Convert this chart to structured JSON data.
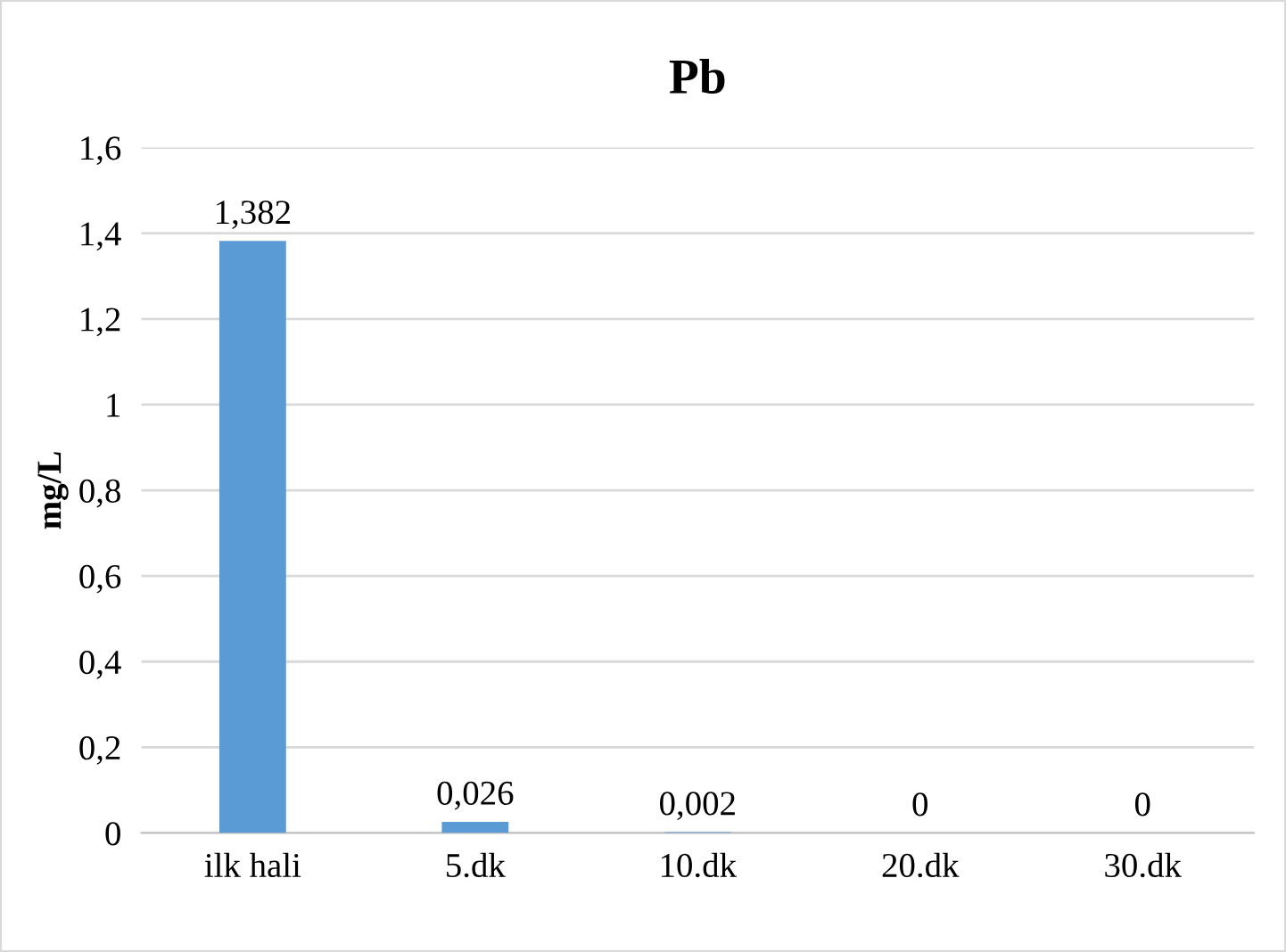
{
  "chart_data": {
    "type": "bar",
    "title": "Pb",
    "ylabel": "mg/L",
    "categories": [
      "ilk hali",
      "5.dk",
      "10.dk",
      "20.dk",
      "30.dk"
    ],
    "values": [
      1.382,
      0.026,
      0.002,
      0,
      0
    ],
    "value_labels": [
      "1,382",
      "0,026",
      "0,002",
      "0",
      "0"
    ],
    "color": "#5b9bd5",
    "ylim": [
      0,
      1.6
    ],
    "yticks": [
      0,
      {
        "value": 0.2,
        "label": "0,2"
      },
      {
        "value": 0.4,
        "label": "0,4"
      },
      {
        "value": 0.6,
        "label": "0,6"
      },
      {
        "value": 0.8,
        "label": "0,8"
      },
      1,
      {
        "value": 1.2,
        "label": "1,2"
      },
      {
        "value": 1.4,
        "label": "1,4"
      },
      {
        "value": 1.6,
        "label": "1,6"
      }
    ],
    "grid": "y",
    "legend": false
  }
}
